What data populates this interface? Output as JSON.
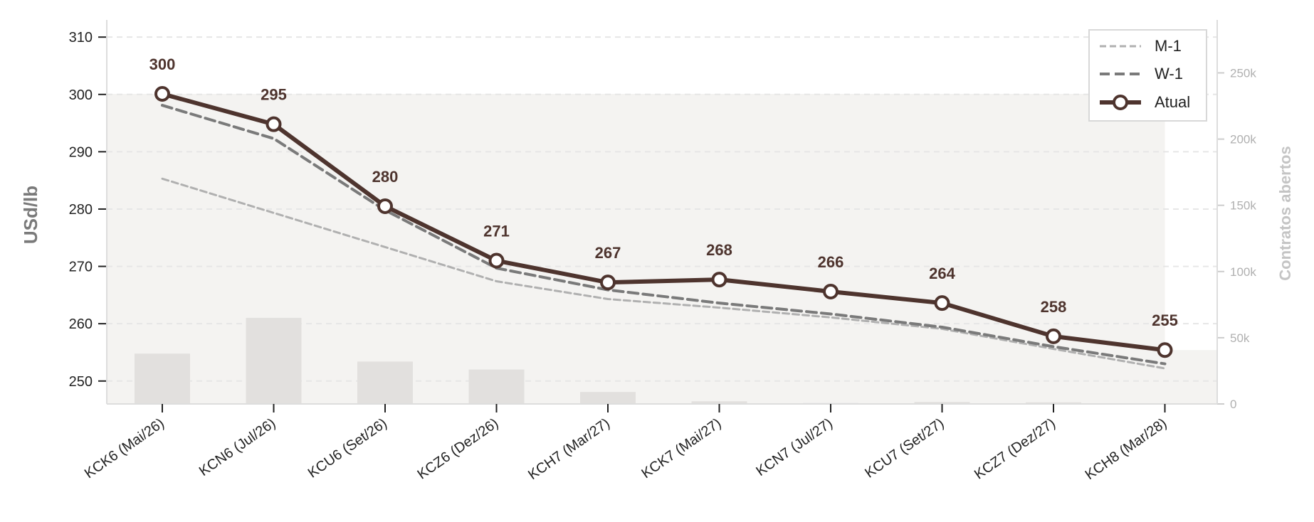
{
  "chart_data": {
    "type": "line",
    "categories": [
      "KCK6 (Mai/26)",
      "KCN6 (Jul/26)",
      "KCU6 (Set/26)",
      "KCZ6 (Dez/26)",
      "KCH7 (Mar/27)",
      "KCK7 (Mai/27)",
      "KCN7 (Jul/27)",
      "KCU7 (Set/27)",
      "KCZ7 (Dez/27)",
      "KCH8 (Mar/28)"
    ],
    "ylabel": "USd/lb",
    "y2label": "Contratos abertos",
    "ylim": [
      246,
      313
    ],
    "y2lim": [
      0,
      290000
    ],
    "yticks": [
      250,
      260,
      270,
      280,
      290,
      300,
      310
    ],
    "y2ticks": [
      0,
      50000,
      100000,
      150000,
      200000,
      250000
    ],
    "y2tick_labels": [
      "0",
      "50k",
      "100k",
      "150k",
      "200k",
      "250k"
    ],
    "series": [
      {
        "name": "M-1",
        "style": "dashed-fine",
        "color": "#b0b0b0",
        "values": [
          285.3,
          null,
          null,
          267.4,
          264.3,
          262.8,
          261.1,
          259.1,
          255.6,
          252.2
        ]
      },
      {
        "name": "W-1",
        "style": "dashed",
        "color": "#7a7a7a",
        "values": [
          298.1,
          292.3,
          279.8,
          269.7,
          265.9,
          263.6,
          261.7,
          259.4,
          256.0,
          253.0
        ]
      },
      {
        "name": "Atual",
        "style": "solid-marker",
        "color": "#4e342e",
        "values": [
          300.1,
          294.8,
          280.5,
          271.0,
          267.2,
          267.7,
          265.6,
          263.6,
          257.8,
          255.4
        ]
      }
    ],
    "data_labels": [
      "300",
      "295",
      "280",
      "271",
      "267",
      "268",
      "266",
      "264",
      "258",
      "255"
    ],
    "open_interest": {
      "name": "Contratos abertos",
      "color": "#e2e0de",
      "values": [
        38000,
        65000,
        32000,
        26000,
        9000,
        2000,
        700,
        1500,
        1200,
        200
      ]
    },
    "background_fill": {
      "color": "#f4f3f1"
    },
    "grid": "horizontal-dashed",
    "legend": {
      "position": "top-right",
      "entries": [
        "M-1",
        "W-1",
        "Atual"
      ]
    }
  }
}
